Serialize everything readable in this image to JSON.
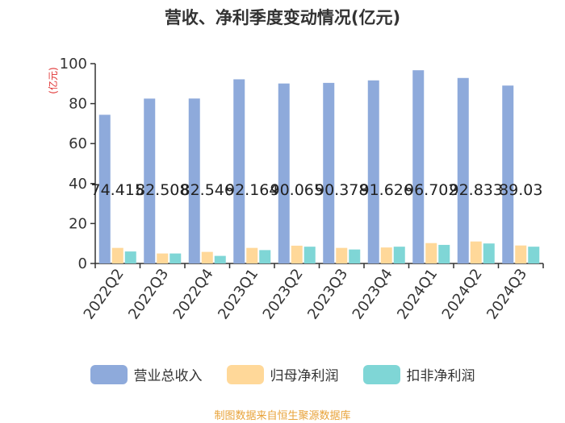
{
  "title": "营收、净利季度变动情况(亿元)",
  "source": "制图数据来自恒生聚源数据库",
  "chart_data": {
    "type": "bar",
    "title": "营收、净利季度变动情况(亿元)",
    "ylabel": "(亿元)",
    "ylim": [
      0,
      100
    ],
    "yticks": [
      0,
      20,
      40,
      60,
      80,
      100
    ],
    "grid": false,
    "legend_position": "bottom",
    "categories": [
      "2022Q2",
      "2022Q3",
      "2022Q4",
      "2023Q1",
      "2023Q2",
      "2023Q3",
      "2023Q4",
      "2024Q1",
      "2024Q2",
      "2024Q3"
    ],
    "series": [
      {
        "name": "营业总收入",
        "color": "#8eaadb",
        "values": [
          74.415,
          82.508,
          82.546,
          92.164,
          90.065,
          90.378,
          91.626,
          96.702,
          92.833,
          89.03
        ],
        "labels": [
          "74.415",
          "82.508",
          "82.546",
          "92.164",
          "90.065",
          "90.378",
          "91.626",
          "96.702",
          "92.833",
          "89.03"
        ]
      },
      {
        "name": "归母净利润",
        "color": "#ffd899",
        "values": [
          7.8,
          5.0,
          5.8,
          7.8,
          8.9,
          7.8,
          8.0,
          10.2,
          11.0,
          9.0
        ]
      },
      {
        "name": "扣非净利润",
        "color": "#7fd6d6",
        "values": [
          6.0,
          5.0,
          3.8,
          6.7,
          8.4,
          7.0,
          8.4,
          9.3,
          10.0,
          8.4
        ]
      }
    ]
  }
}
